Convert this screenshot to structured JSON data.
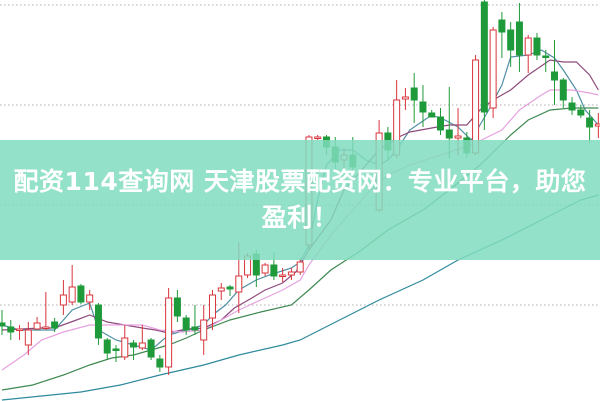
{
  "banner": {
    "line1": "配资114查询网 天津股票配资网：专业平台，助您",
    "line2": "盈利！"
  },
  "colors": {
    "up": "#d8343c",
    "down": "#1f9a3a",
    "banner": "#80dcbe",
    "grid": "#b0b0b0"
  },
  "chart_data": {
    "type": "candlestick",
    "title": "",
    "xlabel": "",
    "ylabel": "",
    "grid": true,
    "legend": "none",
    "candles_ohlc": [
      [
        77,
        90,
        65,
        74
      ],
      [
        73,
        80,
        60,
        68
      ],
      [
        70,
        75,
        60,
        71
      ],
      [
        55,
        78,
        45,
        70
      ],
      [
        71,
        83,
        70,
        77
      ],
      [
        72,
        108,
        70,
        73
      ],
      [
        78,
        82,
        68,
        72
      ],
      [
        95,
        120,
        85,
        105
      ],
      [
        98,
        135,
        95,
        113
      ],
      [
        114,
        116,
        96,
        98
      ],
      [
        98,
        110,
        90,
        105
      ],
      [
        95,
        97,
        55,
        62
      ],
      [
        60,
        62,
        40,
        47
      ],
      [
        51,
        55,
        38,
        50
      ],
      [
        43,
        75,
        40,
        62
      ],
      [
        57,
        60,
        40,
        53
      ],
      [
        52,
        75,
        50,
        57
      ],
      [
        60,
        62,
        40,
        43
      ],
      [
        41,
        45,
        28,
        33
      ],
      [
        33,
        112,
        25,
        102
      ],
      [
        102,
        110,
        78,
        84
      ],
      [
        82,
        85,
        65,
        70
      ],
      [
        73,
        95,
        65,
        70
      ],
      [
        60,
        95,
        45,
        80
      ],
      [
        82,
        110,
        70,
        105
      ],
      [
        109,
        117,
        100,
        112
      ],
      [
        113,
        115,
        104,
        111
      ],
      [
        108,
        158,
        87,
        124
      ],
      [
        125,
        147,
        122,
        144
      ],
      [
        146,
        150,
        113,
        125
      ],
      [
        127,
        137,
        124,
        135
      ],
      [
        135,
        148,
        120,
        124
      ],
      [
        125,
        132,
        118,
        125
      ],
      [
        125,
        132,
        120,
        128
      ],
      [
        128,
        142,
        125,
        138
      ],
      [
        155,
        265,
        150,
        263
      ],
      [
        262,
        265,
        260,
        263
      ],
      [
        263,
        265,
        245,
        253
      ],
      [
        253,
        263,
        230,
        238
      ],
      [
        240,
        252,
        230,
        245
      ],
      [
        245,
        263,
        220,
        233
      ],
      null,
      null,
      [
        190,
        280,
        188,
        267
      ],
      [
        267,
        273,
        240,
        250
      ],
      [
        245,
        320,
        242,
        300
      ],
      [
        301,
        312,
        290,
        303
      ],
      [
        312,
        327,
        277,
        300
      ],
      [
        298,
        315,
        273,
        288
      ],
      [
        287,
        290,
        283,
        283
      ],
      [
        283,
        292,
        265,
        270
      ],
      [
        270,
        313,
        242,
        262
      ],
      [
        262,
        292,
        245,
        264
      ],
      [
        262,
        268,
        242,
        247
      ],
      [
        247,
        345,
        245,
        340
      ],
      [
        398,
        400,
        270,
        288
      ],
      [
        292,
        373,
        282,
        370
      ],
      [
        380,
        388,
        342,
        368
      ],
      [
        370,
        378,
        333,
        350
      ],
      [
        378,
        397,
        328,
        345
      ],
      [
        345,
        365,
        327,
        362
      ],
      [
        362,
        367,
        340,
        345
      ],
      [
        344,
        350,
        328,
        343
      ],
      [
        328,
        360,
        295,
        320
      ],
      [
        320,
        322,
        292,
        300
      ],
      [
        297,
        303,
        285,
        290
      ],
      [
        290,
        295,
        282,
        285
      ],
      [
        282,
        290,
        257,
        273
      ],
      [
        274,
        287,
        262,
        276
      ]
    ],
    "moving_averages": [
      {
        "color": "#4f8fa3",
        "points": [
          [
            0,
            75
          ],
          [
            2,
            70
          ],
          [
            6,
            70
          ],
          [
            8,
            90
          ],
          [
            10,
            97
          ],
          [
            11,
            70
          ],
          [
            13,
            60
          ],
          [
            15,
            55
          ],
          [
            17,
            50
          ],
          [
            19,
            65
          ],
          [
            21,
            70
          ],
          [
            23,
            75
          ],
          [
            24,
            85
          ],
          [
            25.5,
            95
          ],
          [
            27,
            110
          ],
          [
            29,
            120
          ],
          [
            30.5,
            125
          ],
          [
            33,
            132
          ],
          [
            34,
            138
          ],
          [
            35,
            155
          ],
          [
            36,
            200
          ],
          [
            37,
            235
          ],
          [
            38.5,
            250
          ],
          [
            40,
            250
          ],
          [
            41.5,
            240
          ],
          [
            43,
            235
          ],
          [
            44,
            240
          ],
          [
            45,
            250
          ],
          [
            46.5,
            270
          ],
          [
            49,
            285
          ],
          [
            50.5,
            280
          ],
          [
            52,
            273
          ],
          [
            53.5,
            260
          ],
          [
            54.5,
            275
          ],
          [
            55.5,
            290
          ],
          [
            57,
            315
          ],
          [
            58,
            343
          ],
          [
            60,
            345
          ],
          [
            61.5,
            350
          ],
          [
            63,
            342
          ],
          [
            64,
            330
          ],
          [
            65.5,
            310
          ],
          [
            66.5,
            290
          ],
          [
            68,
            275
          ]
        ]
      },
      {
        "color": "#8e4a7c",
        "points": [
          [
            0,
            70
          ],
          [
            4.5,
            72
          ],
          [
            6,
            72
          ],
          [
            8.5,
            80
          ],
          [
            10,
            85
          ],
          [
            12,
            78
          ],
          [
            14,
            75
          ],
          [
            16,
            72
          ],
          [
            17.5,
            70
          ],
          [
            19,
            67
          ],
          [
            20.5,
            70
          ],
          [
            23,
            72
          ],
          [
            25,
            80
          ],
          [
            26.5,
            92
          ],
          [
            28.5,
            102
          ],
          [
            30,
            110
          ],
          [
            32,
            117
          ],
          [
            33.5,
            128
          ],
          [
            35,
            150
          ],
          [
            37.5,
            180
          ],
          [
            39,
            210
          ],
          [
            41,
            230
          ],
          [
            43,
            250
          ],
          [
            45,
            262
          ],
          [
            46.5,
            268
          ],
          [
            49,
            272
          ],
          [
            51,
            275
          ],
          [
            53,
            275
          ],
          [
            54.5,
            290
          ],
          [
            56,
            300
          ],
          [
            58,
            310
          ],
          [
            60,
            325
          ],
          [
            62.5,
            340
          ],
          [
            64,
            338
          ],
          [
            65.5,
            338
          ],
          [
            67,
            325
          ],
          [
            68,
            310
          ]
        ]
      },
      {
        "color": "#e6a2e0",
        "points": [
          [
            0,
            30
          ],
          [
            2.5,
            45
          ],
          [
            4.5,
            60
          ],
          [
            7,
            68
          ],
          [
            10,
            75
          ],
          [
            12.5,
            75
          ],
          [
            16,
            75
          ],
          [
            18,
            70
          ],
          [
            20.5,
            68
          ],
          [
            23,
            70
          ],
          [
            25,
            80
          ],
          [
            27,
            90
          ],
          [
            29.5,
            100
          ],
          [
            32,
            110
          ],
          [
            34,
            120
          ],
          [
            35,
            135
          ],
          [
            37.5,
            165
          ],
          [
            40,
            190
          ],
          [
            42,
            210
          ],
          [
            44,
            225
          ],
          [
            46.5,
            235
          ],
          [
            50,
            245
          ],
          [
            53.5,
            255
          ],
          [
            57,
            270
          ],
          [
            59,
            290
          ],
          [
            61.5,
            305
          ],
          [
            62.5,
            310
          ],
          [
            65,
            310
          ],
          [
            67,
            307
          ],
          [
            68,
            305
          ]
        ]
      },
      {
        "color": "#3f8a52",
        "points": [
          [
            0,
            10
          ],
          [
            3.5,
            15
          ],
          [
            7,
            25
          ],
          [
            10,
            35
          ],
          [
            12.5,
            42
          ],
          [
            15,
            45
          ],
          [
            17,
            50
          ],
          [
            19,
            55
          ],
          [
            21,
            62
          ],
          [
            23,
            70
          ],
          [
            26,
            80
          ],
          [
            29.5,
            88
          ],
          [
            33,
            95
          ],
          [
            35,
            110
          ],
          [
            37.5,
            130
          ],
          [
            41,
            150
          ],
          [
            44,
            170
          ],
          [
            48,
            190
          ],
          [
            51,
            210
          ],
          [
            54.5,
            235
          ],
          [
            58,
            265
          ],
          [
            60,
            280
          ],
          [
            62.5,
            290
          ],
          [
            65,
            292
          ],
          [
            68,
            292
          ]
        ]
      },
      {
        "color": "#2e8a9c",
        "points": [
          [
            0,
            0
          ],
          [
            4.5,
            4
          ],
          [
            9,
            8
          ],
          [
            13.5,
            15
          ],
          [
            18,
            25
          ],
          [
            23,
            35
          ],
          [
            27,
            45
          ],
          [
            32,
            55
          ],
          [
            34,
            60
          ],
          [
            38.5,
            80
          ],
          [
            43,
            100
          ],
          [
            48,
            120
          ],
          [
            52,
            140
          ],
          [
            57,
            160
          ],
          [
            61.5,
            180
          ],
          [
            66,
            200
          ],
          [
            68,
            205
          ]
        ]
      }
    ]
  }
}
